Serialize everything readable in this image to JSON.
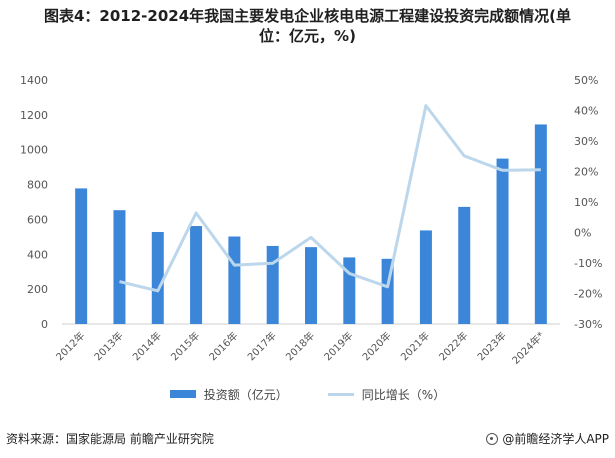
{
  "title": {
    "line1": "图表4：2012-2024年我国主要发电企业核电电源工程建设投资完成额情况(单",
    "line2": "位：亿元，%)"
  },
  "chart_data": {
    "type": "bar",
    "categories": [
      "2012年",
      "2013年",
      "2014年",
      "2015年",
      "2016年",
      "2017年",
      "2018年",
      "2019年",
      "2020年",
      "2021年",
      "2022年",
      "2023年",
      "2024年*"
    ],
    "series": [
      {
        "name": "投资额（亿元）",
        "type": "bar",
        "axis": "left",
        "color": "#3b86d9",
        "values": [
          778,
          653,
          528,
          562,
          502,
          448,
          441,
          382,
          374,
          537,
          672,
          949,
          1145
        ]
      },
      {
        "name": "同比增长（%）",
        "type": "line",
        "axis": "right",
        "color": "#bcd7ec",
        "values": [
          null,
          -16.1,
          -19.1,
          6.4,
          -10.7,
          -10.1,
          -1.6,
          -13.4,
          -17.8,
          41.6,
          25.1,
          20.4,
          20.6
        ]
      }
    ],
    "y_left": {
      "min": 0,
      "max": 1400,
      "ticks": [
        0,
        200,
        400,
        600,
        800,
        1000,
        1200,
        1400
      ]
    },
    "y_right": {
      "min": -30,
      "max": 50,
      "ticks": [
        "-30%",
        "-20%",
        "-10%",
        "0%",
        "10%",
        "20%",
        "30%",
        "40%",
        "50%"
      ]
    },
    "grid": false,
    "legend_position": "bottom"
  },
  "legend": {
    "bar_label": "投资额（亿元）",
    "line_label": "同比增长（%）"
  },
  "footer": {
    "source": "资料来源：国家能源局 前瞻产业研究院",
    "brand": "@前瞻经济学人APP"
  },
  "colors": {
    "bar": "#3b86d9",
    "line": "#bcd7ec",
    "axis": "#cfcfcf"
  }
}
